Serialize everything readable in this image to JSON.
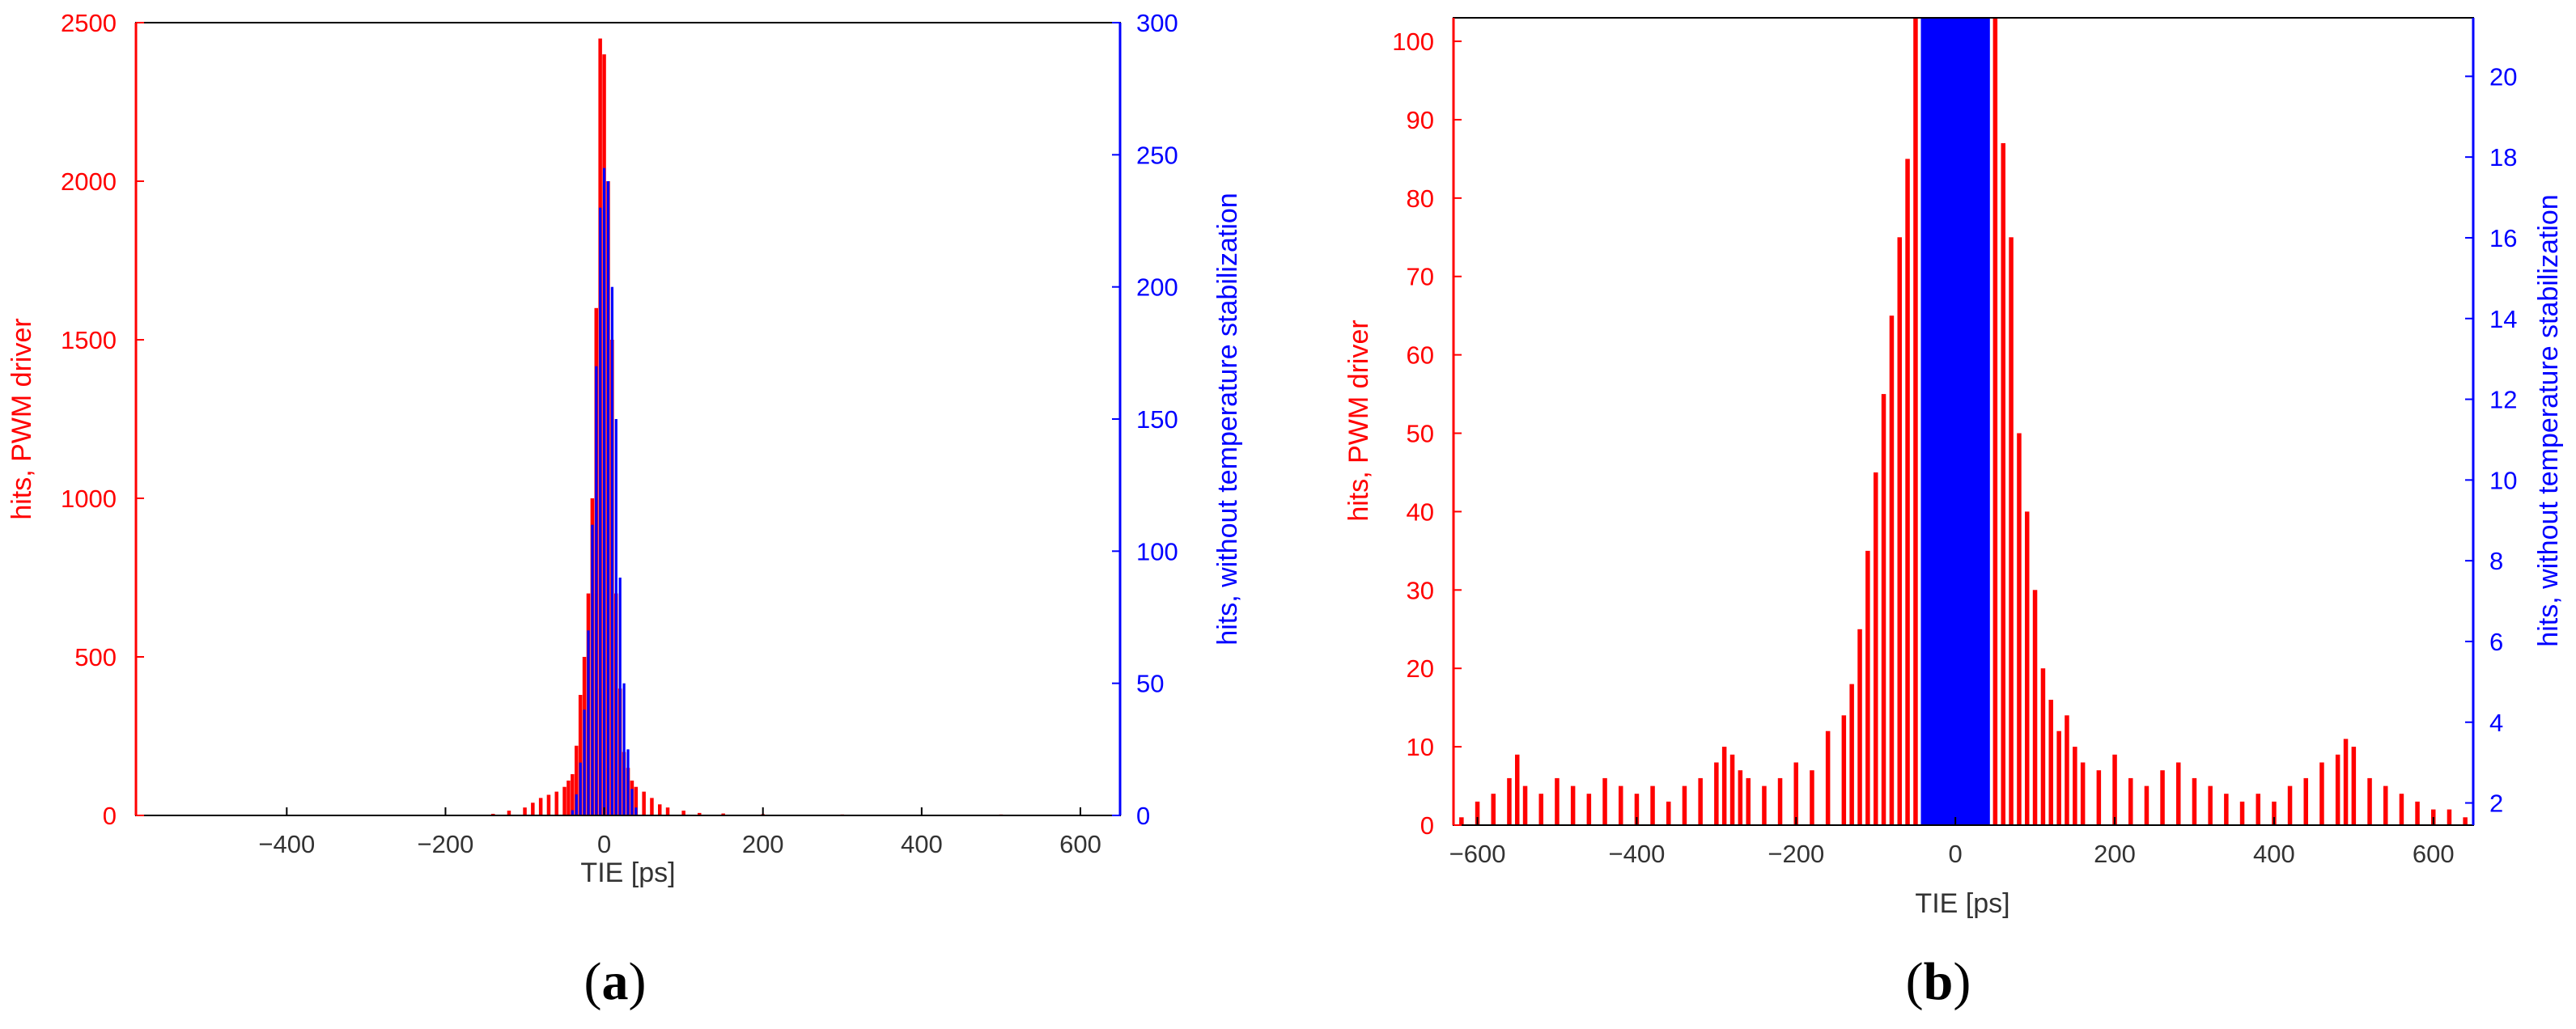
{
  "colors": {
    "left": "#ff0000",
    "right": "#0000ff",
    "axis": "#000000"
  },
  "panels": [
    {
      "label_open": "(",
      "label_letter": "a",
      "label_close": ")"
    },
    {
      "label_open": "(",
      "label_letter": "b",
      "label_close": ")"
    }
  ],
  "chart_data": [
    {
      "type": "bar",
      "xlabel": "TIE [ps]",
      "ylabel_left": "hits, PWM driver",
      "ylabel_right": "hits, without temperature stabilization",
      "xlim": [
        -590,
        650
      ],
      "ylim_left": [
        0,
        2500
      ],
      "ylim_right": [
        0,
        300
      ],
      "xticks": [
        -400,
        -200,
        0,
        200,
        400,
        600
      ],
      "xtick_labels": [
        "−400",
        "−200",
        "0",
        "200",
        "400",
        "600"
      ],
      "yticks_left": [
        0,
        500,
        1000,
        1500,
        2000,
        2500
      ],
      "yticks_right": [
        0,
        50,
        100,
        150,
        200,
        250,
        300
      ],
      "grid": false,
      "series": [
        {
          "name": "hits, PWM driver",
          "axis": "left",
          "x": [
            -140,
            -120,
            -100,
            -90,
            -80,
            -70,
            -60,
            -50,
            -45,
            -40,
            -35,
            -30,
            -25,
            -20,
            -15,
            -10,
            -5,
            0,
            5,
            10,
            15,
            20,
            25,
            30,
            35,
            40,
            50,
            60,
            70,
            80,
            100,
            120,
            150,
            200,
            300,
            500
          ],
          "values": [
            5,
            15,
            25,
            40,
            55,
            65,
            75,
            90,
            110,
            130,
            220,
            380,
            500,
            700,
            1000,
            1600,
            2450,
            2400,
            2000,
            1500,
            700,
            400,
            200,
            150,
            110,
            90,
            75,
            55,
            35,
            25,
            15,
            8,
            6,
            4,
            3,
            3
          ]
        },
        {
          "name": "hits, without temperature stabilization",
          "axis": "right",
          "x": [
            -40,
            -35,
            -30,
            -25,
            -20,
            -15,
            -10,
            -5,
            0,
            5,
            10,
            15,
            20,
            25,
            30,
            35,
            40
          ],
          "values": [
            2,
            8,
            20,
            40,
            70,
            110,
            170,
            230,
            245,
            240,
            200,
            150,
            90,
            50,
            25,
            10,
            3
          ]
        }
      ]
    },
    {
      "type": "bar",
      "xlabel": "TIE [ps]",
      "ylabel_left": "hits, PWM driver",
      "ylabel_right": "hits, without temperature stabilization",
      "xlim": [
        -630,
        650
      ],
      "ylim_left": [
        0,
        103
      ],
      "ylim_right": [
        1.45,
        21.45
      ],
      "xticks": [
        -600,
        -400,
        -200,
        0,
        200,
        400,
        600
      ],
      "xtick_labels": [
        "−600",
        "−400",
        "−200",
        "0",
        "200",
        "400",
        "600"
      ],
      "yticks_left": [
        0,
        10,
        20,
        30,
        40,
        50,
        60,
        70,
        80,
        90,
        100
      ],
      "yticks_right": [
        2,
        4,
        6,
        8,
        10,
        12,
        14,
        16,
        18,
        20
      ],
      "grid": false,
      "series": [
        {
          "name": "hits, PWM driver",
          "axis": "left",
          "x": [
            -620,
            -600,
            -580,
            -560,
            -550,
            -540,
            -520,
            -500,
            -480,
            -460,
            -440,
            -420,
            -400,
            -380,
            -360,
            -340,
            -320,
            -300,
            -290,
            -280,
            -270,
            -260,
            -240,
            -220,
            -200,
            -180,
            -160,
            -140,
            -130,
            -120,
            -110,
            -100,
            -90,
            -80,
            -70,
            -60,
            -50,
            -40,
            -30,
            -20,
            -10,
            0,
            10,
            20,
            30,
            40,
            50,
            60,
            70,
            80,
            90,
            100,
            110,
            120,
            130,
            140,
            150,
            160,
            180,
            200,
            220,
            240,
            260,
            280,
            300,
            320,
            340,
            360,
            380,
            400,
            420,
            440,
            460,
            480,
            490,
            500,
            520,
            540,
            560,
            580,
            600,
            620,
            640
          ],
          "values": [
            1,
            3,
            4,
            6,
            9,
            5,
            4,
            6,
            5,
            4,
            6,
            5,
            4,
            5,
            3,
            5,
            6,
            8,
            10,
            9,
            7,
            6,
            5,
            6,
            8,
            7,
            12,
            14,
            18,
            25,
            35,
            45,
            55,
            65,
            75,
            85,
            103,
            103,
            103,
            103,
            103,
            103,
            103,
            103,
            103,
            103,
            103,
            87,
            75,
            50,
            40,
            30,
            20,
            16,
            12,
            14,
            10,
            8,
            7,
            9,
            6,
            5,
            7,
            8,
            6,
            5,
            4,
            3,
            4,
            3,
            5,
            6,
            8,
            9,
            11,
            10,
            6,
            5,
            4,
            3,
            2,
            2,
            1
          ]
        },
        {
          "name": "hits, without temperature stabilization",
          "axis": "right",
          "x": [
            -40,
            -35,
            -30,
            -25,
            -20,
            -15,
            -10,
            -5,
            0,
            5,
            10,
            15,
            20,
            25,
            30,
            35,
            40
          ],
          "values": [
            21.45,
            21.45,
            21.45,
            21.45,
            21.45,
            21.45,
            21.45,
            21.45,
            21.45,
            21.45,
            21.45,
            21.45,
            21.45,
            21.45,
            21.45,
            21.45,
            21.45
          ]
        }
      ]
    }
  ]
}
